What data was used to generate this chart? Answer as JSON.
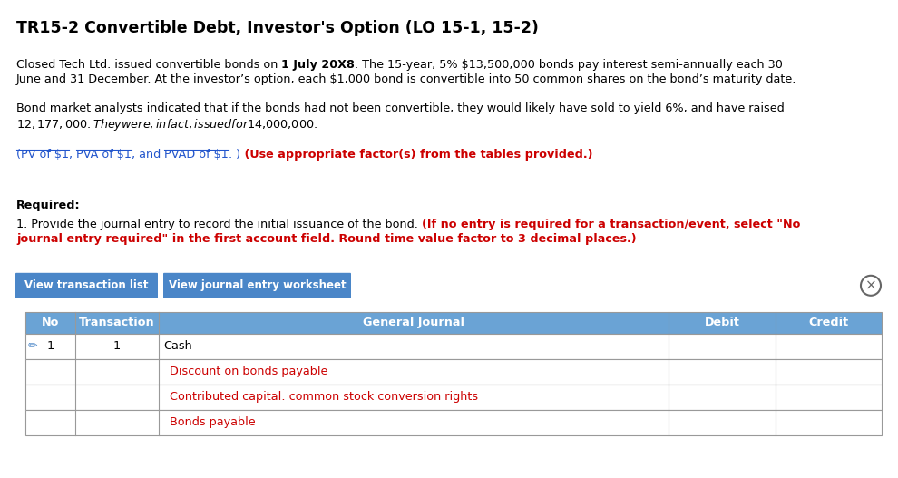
{
  "title": "TR15-2 Convertible Debt, Investor's Option (LO 15-1, 15-2)",
  "bg_color": "#ffffff",
  "title_color": "#000000",
  "title_fontsize": 12.5,
  "body_fontsize": 9.2,
  "table_fontsize": 9.2,
  "text_color": "#000000",
  "red_color": "#cc0000",
  "link_color": "#2255cc",
  "btn_bg": "#4a86c8",
  "btn_text_color": "#ffffff",
  "table_header_bg": "#6aa3d5",
  "table_header_text_color": "#ffffff",
  "table_border_color": "#999999",
  "pencil_color": "#4a86c8",
  "col_headers": [
    "No",
    "Transaction",
    "General Journal",
    "Debit",
    "Credit"
  ],
  "rows": [
    [
      "1",
      "1",
      "Cash",
      "",
      "",
      "black"
    ],
    [
      "",
      "",
      "Discount on bonds payable",
      "",
      "",
      "red"
    ],
    [
      "",
      "",
      "Contributed capital: common stock conversion rights",
      "",
      "",
      "red"
    ],
    [
      "",
      "",
      "Bonds payable",
      "",
      "",
      "red"
    ]
  ],
  "btn1_text": "View transaction list",
  "btn2_text": "View journal entry worksheet"
}
